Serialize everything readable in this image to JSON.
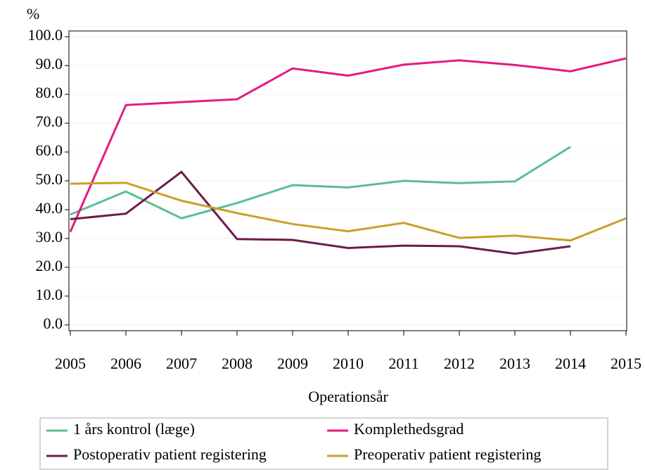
{
  "chart_data": {
    "type": "line",
    "y_label": "%",
    "x_label": "Operationsår",
    "x": [
      2005,
      2006,
      2007,
      2008,
      2009,
      2010,
      2011,
      2012,
      2013,
      2014,
      2015
    ],
    "xlim": [
      2005,
      2015
    ],
    "xticks": [
      2005,
      2006,
      2007,
      2008,
      2009,
      2010,
      2011,
      2012,
      2013,
      2014,
      2015
    ],
    "ylim": [
      -2,
      102
    ],
    "yticks": [
      {
        "value": 0,
        "label": "0.0"
      },
      {
        "value": 10,
        "label": "10.0"
      },
      {
        "value": 20,
        "label": "20.0"
      },
      {
        "value": 30,
        "label": "30.0"
      },
      {
        "value": 40,
        "label": "40.0"
      },
      {
        "value": 50,
        "label": "50.0"
      },
      {
        "value": 60,
        "label": "60.0"
      },
      {
        "value": 70,
        "label": "70.0"
      },
      {
        "value": 80,
        "label": "80.0"
      },
      {
        "value": 90,
        "label": "90.0"
      },
      {
        "value": 100,
        "label": "100.0"
      }
    ],
    "grid": true,
    "series": [
      {
        "name": "1 års kontrol (læge)",
        "color": "#5cbf8f",
        "values": [
          38.3,
          46.3,
          37.0,
          42.3,
          48.5,
          47.7,
          50.0,
          49.2,
          49.8,
          61.8,
          null
        ]
      },
      {
        "name": "Komplethedsgrad",
        "color": "#e6197f",
        "values": [
          32.3,
          76.3,
          77.3,
          78.3,
          89.0,
          86.5,
          90.3,
          91.8,
          90.2,
          88.0,
          92.5
        ]
      },
      {
        "name": "Postoperativ patient registering",
        "color": "#6e1b4a",
        "values": [
          36.7,
          38.6,
          53.1,
          29.8,
          29.5,
          26.7,
          27.5,
          27.3,
          24.7,
          27.3,
          null
        ]
      },
      {
        "name": "Preoperativ patient registering",
        "color": "#c9a02a",
        "values": [
          49.0,
          49.3,
          43.1,
          38.8,
          35.0,
          32.5,
          35.4,
          30.2,
          31.0,
          29.3,
          37.0
        ]
      }
    ]
  }
}
